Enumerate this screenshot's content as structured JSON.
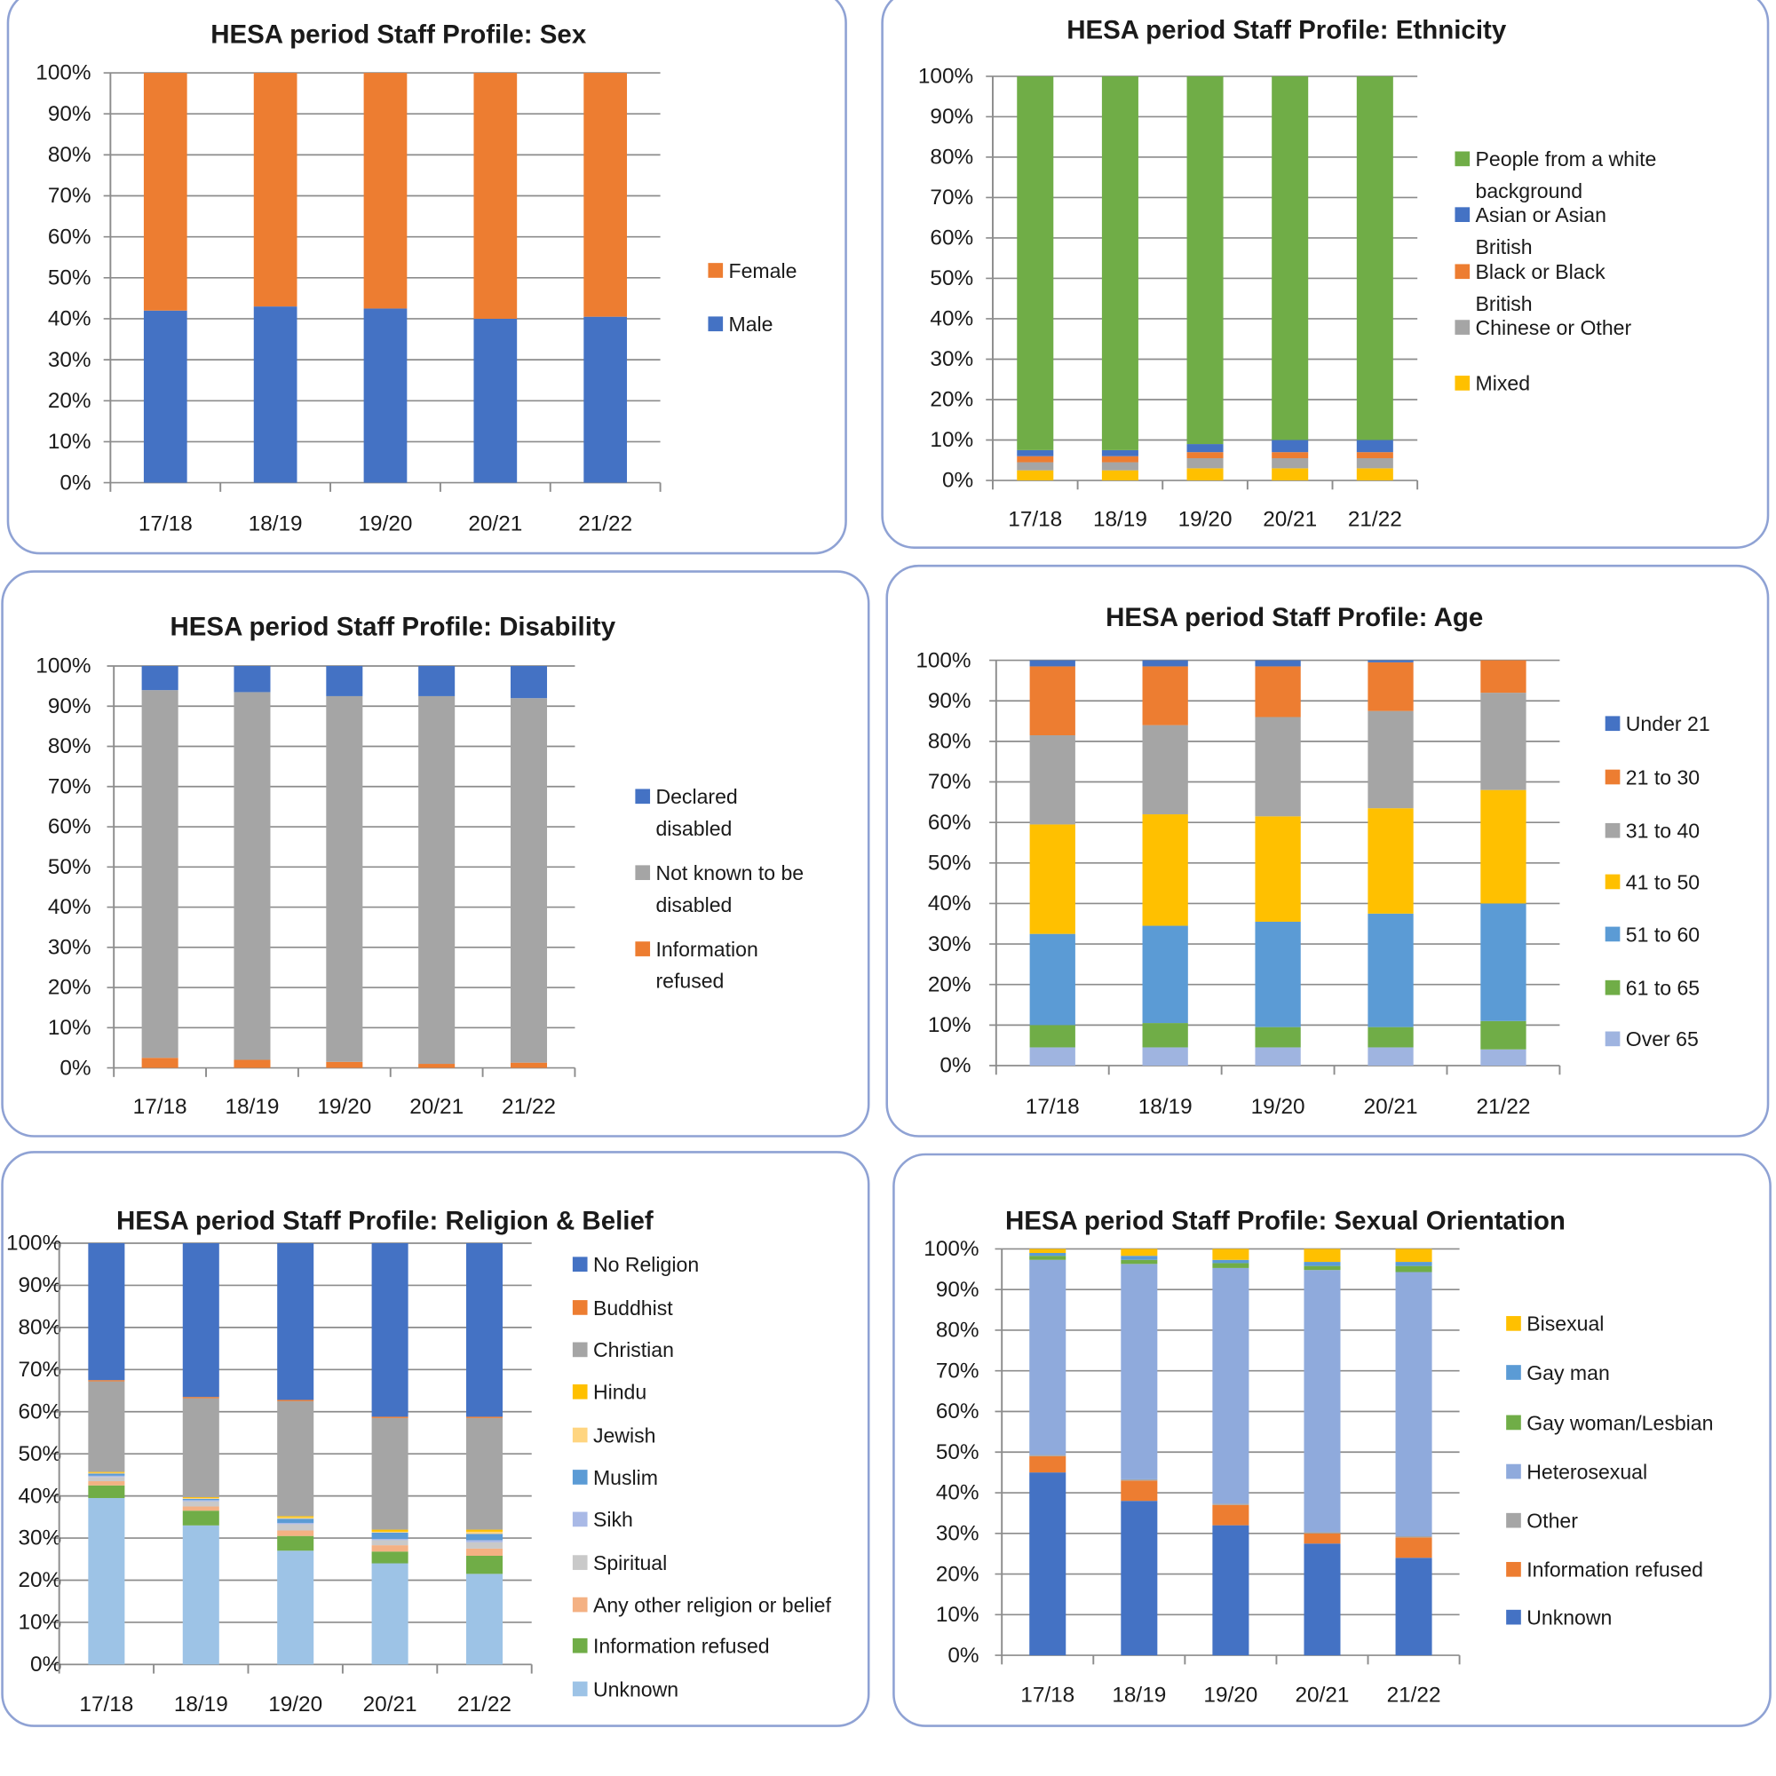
{
  "chart_data": [
    {
      "id": "sex",
      "type": "bar",
      "stacked": true,
      "title": "HESA period Staff Profile: Sex",
      "categories": [
        "17/18",
        "18/19",
        "19/20",
        "20/21",
        "21/22"
      ],
      "yticks": [
        "0%",
        "10%",
        "20%",
        "30%",
        "40%",
        "50%",
        "60%",
        "70%",
        "80%",
        "90%",
        "100%"
      ],
      "ylim": [
        0,
        100
      ],
      "series": [
        {
          "name": "Female",
          "color": "#ed7d31",
          "values": [
            58,
            57,
            57.5,
            60,
            59.5
          ]
        },
        {
          "name": "Male",
          "color": "#4472c4",
          "values": [
            42,
            43,
            42.5,
            40,
            40.5
          ]
        }
      ]
    },
    {
      "id": "ethnicity",
      "type": "bar",
      "stacked": true,
      "title": "HESA period Staff Profile: Ethnicity",
      "categories": [
        "17/18",
        "18/19",
        "19/20",
        "20/21",
        "21/22"
      ],
      "yticks": [
        "0%",
        "10%",
        "20%",
        "30%",
        "40%",
        "50%",
        "60%",
        "70%",
        "80%",
        "90%",
        "100%"
      ],
      "ylim": [
        0,
        100
      ],
      "series": [
        {
          "name": "People from a white background",
          "color": "#70ad47",
          "values": [
            92.5,
            92.5,
            91,
            90,
            90
          ]
        },
        {
          "name": "Asian or Asian British",
          "color": "#4472c4",
          "values": [
            1.5,
            1.5,
            2,
            3,
            3
          ]
        },
        {
          "name": "Black or Black British",
          "color": "#ed7d31",
          "values": [
            1.5,
            1.5,
            1.5,
            1.5,
            1.5
          ]
        },
        {
          "name": "Chinese or Other",
          "color": "#a5a5a5",
          "values": [
            2,
            2,
            2.5,
            2.5,
            2.5
          ]
        },
        {
          "name": "Mixed",
          "color": "#ffc000",
          "values": [
            2.5,
            2.5,
            3,
            3,
            3
          ]
        }
      ]
    },
    {
      "id": "disability",
      "type": "bar",
      "stacked": true,
      "title": "HESA period Staff Profile: Disability",
      "categories": [
        "17/18",
        "18/19",
        "19/20",
        "20/21",
        "21/22"
      ],
      "yticks": [
        "0%",
        "10%",
        "20%",
        "30%",
        "40%",
        "50%",
        "60%",
        "70%",
        "80%",
        "90%",
        "100%"
      ],
      "ylim": [
        0,
        100
      ],
      "series": [
        {
          "name": "Declared disabled",
          "color": "#4472c4",
          "values": [
            6,
            6.5,
            7.5,
            7.5,
            8
          ]
        },
        {
          "name": "Not known to be disabled",
          "color": "#a5a5a5",
          "values": [
            91.5,
            91.5,
            91,
            91.5,
            90.7
          ]
        },
        {
          "name": "Information refused",
          "color": "#ed7d31",
          "values": [
            2.5,
            2,
            1.5,
            1,
            1.3
          ]
        }
      ]
    },
    {
      "id": "age",
      "type": "bar",
      "stacked": true,
      "title": "HESA period Staff Profile: Age",
      "categories": [
        "17/18",
        "18/19",
        "19/20",
        "20/21",
        "21/22"
      ],
      "yticks": [
        "0%",
        "10%",
        "20%",
        "30%",
        "40%",
        "50%",
        "60%",
        "70%",
        "80%",
        "90%",
        "100%"
      ],
      "ylim": [
        0,
        100
      ],
      "series": [
        {
          "name": "Under 21",
          "color": "#4472c4",
          "values": [
            1.5,
            1.5,
            1.5,
            0.5,
            0
          ]
        },
        {
          "name": "21 to 30",
          "color": "#ed7d31",
          "values": [
            17,
            14.5,
            12.5,
            12,
            8
          ]
        },
        {
          "name": "31 to 40",
          "color": "#a5a5a5",
          "values": [
            22,
            22,
            24.5,
            24,
            24
          ]
        },
        {
          "name": "41 to 50",
          "color": "#ffc000",
          "values": [
            27,
            27.5,
            26,
            26,
            28
          ]
        },
        {
          "name": "51 to 60",
          "color": "#5b9bd5",
          "values": [
            22.5,
            24,
            26,
            28,
            29
          ]
        },
        {
          "name": "61 to 65",
          "color": "#70ad47",
          "values": [
            5.5,
            6,
            5,
            5,
            7
          ]
        },
        {
          "name": "Over 65",
          "color": "#9fb4e0",
          "values": [
            4.5,
            4.5,
            4.5,
            4.5,
            4
          ]
        }
      ]
    },
    {
      "id": "religion",
      "type": "bar",
      "stacked": true,
      "title": "HESA period Staff Profile: Religion & Belief",
      "categories": [
        "17/18",
        "18/19",
        "19/20",
        "20/21",
        "21/22"
      ],
      "yticks": [
        "0%",
        "10%",
        "20%",
        "30%",
        "40%",
        "50%",
        "60%",
        "70%",
        "80%",
        "90%",
        "100%"
      ],
      "ylim": [
        0,
        100
      ],
      "series": [
        {
          "name": "No Religion",
          "color": "#4472c4",
          "values": [
            32.5,
            36.5,
            37.2,
            41.2,
            41.2
          ]
        },
        {
          "name": "Buddhist",
          "color": "#ed7d31",
          "values": [
            0.3,
            0.3,
            0.3,
            0.3,
            0.3
          ]
        },
        {
          "name": "Christian",
          "color": "#a5a5a5",
          "values": [
            21.5,
            23.5,
            27.3,
            26.5,
            26.5
          ]
        },
        {
          "name": "Hindu",
          "color": "#ffc000",
          "values": [
            0.2,
            0.2,
            0.3,
            0.5,
            0.5
          ]
        },
        {
          "name": "Jewish",
          "color": "#ffd580",
          "values": [
            0.2,
            0.2,
            0.3,
            0.2,
            0.5
          ]
        },
        {
          "name": "Muslim",
          "color": "#5b9bd5",
          "values": [
            0.5,
            0.3,
            1,
            1.5,
            1.5
          ]
        },
        {
          "name": "Sikh",
          "color": "#a9b9e6",
          "values": [
            0.3,
            0.3,
            0.3,
            0.3,
            0.5
          ]
        },
        {
          "name": "Spiritual",
          "color": "#c9c9c9",
          "values": [
            1,
            1.2,
            1.5,
            1.2,
            1.5
          ]
        },
        {
          "name": "Any other religion or belief",
          "color": "#f4b183",
          "values": [
            1,
            1,
            1.3,
            1.5,
            1.7
          ]
        },
        {
          "name": "Information refused",
          "color": "#70ad47",
          "values": [
            3,
            3.5,
            3.5,
            2.8,
            4.3
          ]
        },
        {
          "name": "Unknown",
          "color": "#9dc3e6",
          "values": [
            39.5,
            33,
            27,
            24,
            21.5
          ]
        }
      ]
    },
    {
      "id": "sexual_orientation",
      "type": "bar",
      "stacked": true,
      "title": "HESA period Staff Profile: Sexual Orientation",
      "categories": [
        "17/18",
        "18/19",
        "19/20",
        "20/21",
        "21/22"
      ],
      "yticks": [
        "0%",
        "10%",
        "20%",
        "30%",
        "40%",
        "50%",
        "60%",
        "70%",
        "80%",
        "90%",
        "100%"
      ],
      "ylim": [
        0,
        100
      ],
      "series": [
        {
          "name": "Bisexual",
          "color": "#ffc000",
          "values": [
            1,
            2,
            2.7,
            3.5,
            3.5
          ]
        },
        {
          "name": "Gay man",
          "color": "#5b9bd5",
          "values": [
            0.7,
            1,
            0.8,
            1,
            1
          ]
        },
        {
          "name": "Gay woman/Lesbian",
          "color": "#70ad47",
          "values": [
            1,
            1,
            1.2,
            1,
            1.5
          ]
        },
        {
          "name": "Heterosexual",
          "color": "#8faadc",
          "values": [
            48,
            53,
            58,
            64.5,
            65
          ]
        },
        {
          "name": "Other",
          "color": "#a5a5a5",
          "values": [
            0.3,
            0.3,
            0.3,
            0.3,
            0.3
          ]
        },
        {
          "name": "Information refused",
          "color": "#ed7d31",
          "values": [
            4,
            5,
            5,
            2.5,
            5
          ]
        },
        {
          "name": "Unknown",
          "color": "#4472c4",
          "values": [
            45,
            38,
            32,
            27.5,
            24
          ]
        }
      ]
    }
  ]
}
